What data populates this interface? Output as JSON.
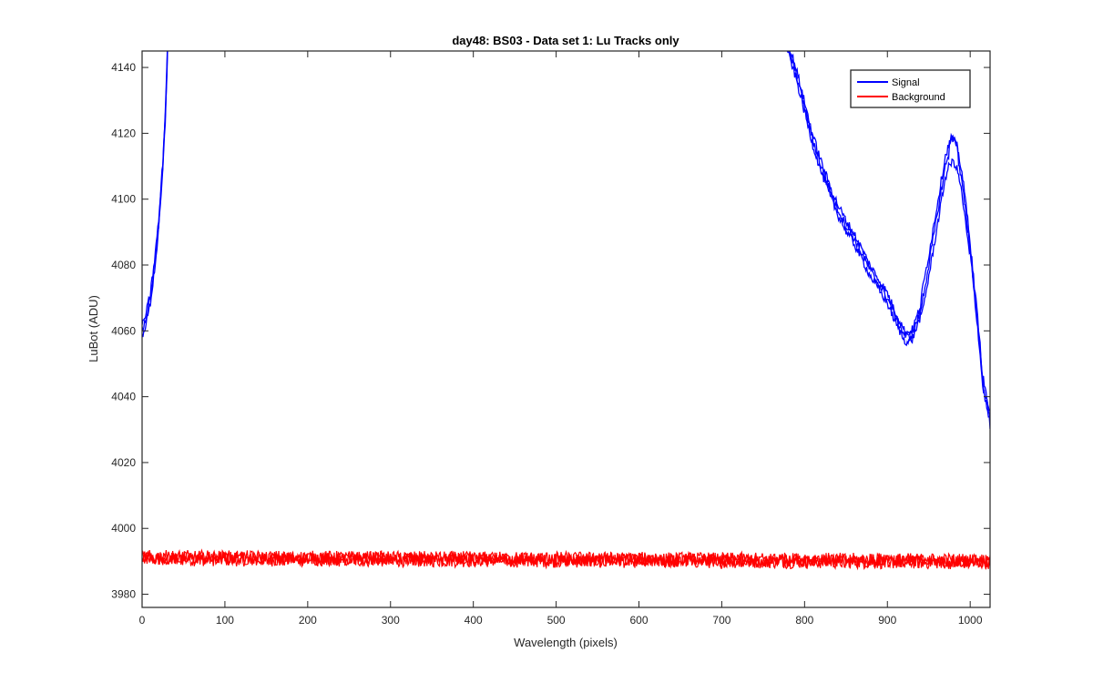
{
  "chart_data": {
    "type": "line",
    "title": "day48: BS03 - Data set 1: Lu Tracks only",
    "xlabel": "Wavelength (pixels)",
    "ylabel": "LuBot (ADU)",
    "xlim": [
      0,
      1024
    ],
    "ylim": [
      3976,
      4145
    ],
    "xticks": [
      0,
      100,
      200,
      300,
      400,
      500,
      600,
      700,
      800,
      900,
      1000
    ],
    "yticks": [
      3980,
      4000,
      4020,
      4040,
      4060,
      4080,
      4100,
      4120,
      4140
    ],
    "grid": false,
    "legend_position": "top-right",
    "series": [
      {
        "name": "Signal",
        "color": "#0000ff",
        "traces": 3,
        "x": [
          0,
          5,
          10,
          15,
          20,
          25,
          28,
          30,
          32,
          770,
          780,
          790,
          800,
          810,
          820,
          830,
          840,
          850,
          860,
          870,
          880,
          890,
          900,
          910,
          920,
          925,
          930,
          940,
          950,
          960,
          970,
          975,
          980,
          985,
          990,
          1000,
          1010,
          1015,
          1024
        ],
        "values": [
          4060,
          4064,
          4070,
          4080,
          4092,
          4110,
          4125,
          4140,
          4160,
          4160,
          4146,
          4138,
          4128,
          4118,
          4110,
          4103,
          4097,
          4092,
          4088,
          4083,
          4078,
          4074,
          4070,
          4064,
          4059,
          4058,
          4059,
          4066,
          4080,
          4095,
          4110,
          4114,
          4115,
          4112,
          4105,
          4085,
          4060,
          4045,
          4033
        ]
      },
      {
        "name": "Background",
        "color": "#ff0000",
        "traces": 3,
        "x": [
          0,
          1024
        ],
        "values": [
          3991,
          3990
        ]
      }
    ]
  }
}
